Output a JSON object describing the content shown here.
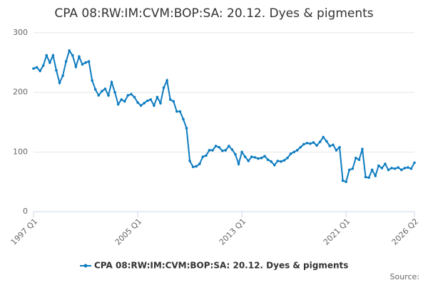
{
  "chart_data": {
    "type": "line",
    "title": "CPA 08:RW:IM:CVM:BOP:SA: 20.12. Dyes & pigments",
    "source": "Source:",
    "categories": [
      "1997 Q1",
      null,
      null,
      null,
      null,
      null,
      null,
      null,
      null,
      null,
      null,
      null,
      null,
      null,
      null,
      null,
      null,
      null,
      null,
      null,
      null,
      null,
      null,
      null,
      null,
      null,
      null,
      null,
      null,
      null,
      null,
      null,
      "2005 Q1",
      null,
      null,
      null,
      null,
      null,
      null,
      null,
      null,
      null,
      null,
      null,
      null,
      null,
      null,
      null,
      null,
      null,
      null,
      null,
      null,
      null,
      null,
      null,
      null,
      null,
      null,
      null,
      null,
      null,
      null,
      null,
      "2013 Q1",
      null,
      null,
      null,
      null,
      null,
      null,
      null,
      null,
      null,
      null,
      null,
      null,
      null,
      null,
      null,
      null,
      null,
      null,
      null,
      null,
      null,
      null,
      null,
      null,
      null,
      null,
      null,
      null,
      null,
      null,
      null,
      "2021 Q1",
      null,
      null,
      null,
      null,
      null,
      null,
      null,
      null,
      null,
      null,
      null,
      null,
      null,
      null,
      null,
      null,
      null,
      null,
      null,
      null,
      "2026 Q2"
    ],
    "series": [
      {
        "name": "CPA 08:RW:IM:CVM:BOP:SA: 20.12. Dyes & pigments",
        "color": "#0e7cc0",
        "values": [
          240,
          242,
          236,
          245,
          262,
          250,
          262,
          237,
          216,
          228,
          252,
          270,
          262,
          243,
          260,
          247,
          250,
          252,
          220,
          205,
          195,
          202,
          206,
          195,
          217,
          200,
          180,
          188,
          185,
          195,
          197,
          192,
          183,
          178,
          182,
          186,
          188,
          178,
          192,
          182,
          208,
          220,
          188,
          185,
          168,
          168,
          155,
          140,
          85,
          75,
          76,
          80,
          92,
          94,
          103,
          103,
          110,
          108,
          102,
          103,
          110,
          104,
          96,
          80,
          100,
          92,
          85,
          92,
          91,
          89,
          90,
          93,
          87,
          84,
          78,
          85,
          84,
          86,
          90,
          97,
          100,
          103,
          108,
          113,
          115,
          114,
          116,
          111,
          117,
          125,
          118,
          110,
          112,
          103,
          108,
          52,
          50,
          70,
          72,
          90,
          87,
          105,
          58,
          57,
          70,
          60,
          77,
          73,
          80,
          70,
          73,
          72,
          74,
          70,
          73,
          74,
          72,
          82
        ]
      }
    ],
    "ylim": [
      0,
      300
    ],
    "yticks": [
      0,
      100,
      200,
      300
    ],
    "grid": true
  }
}
